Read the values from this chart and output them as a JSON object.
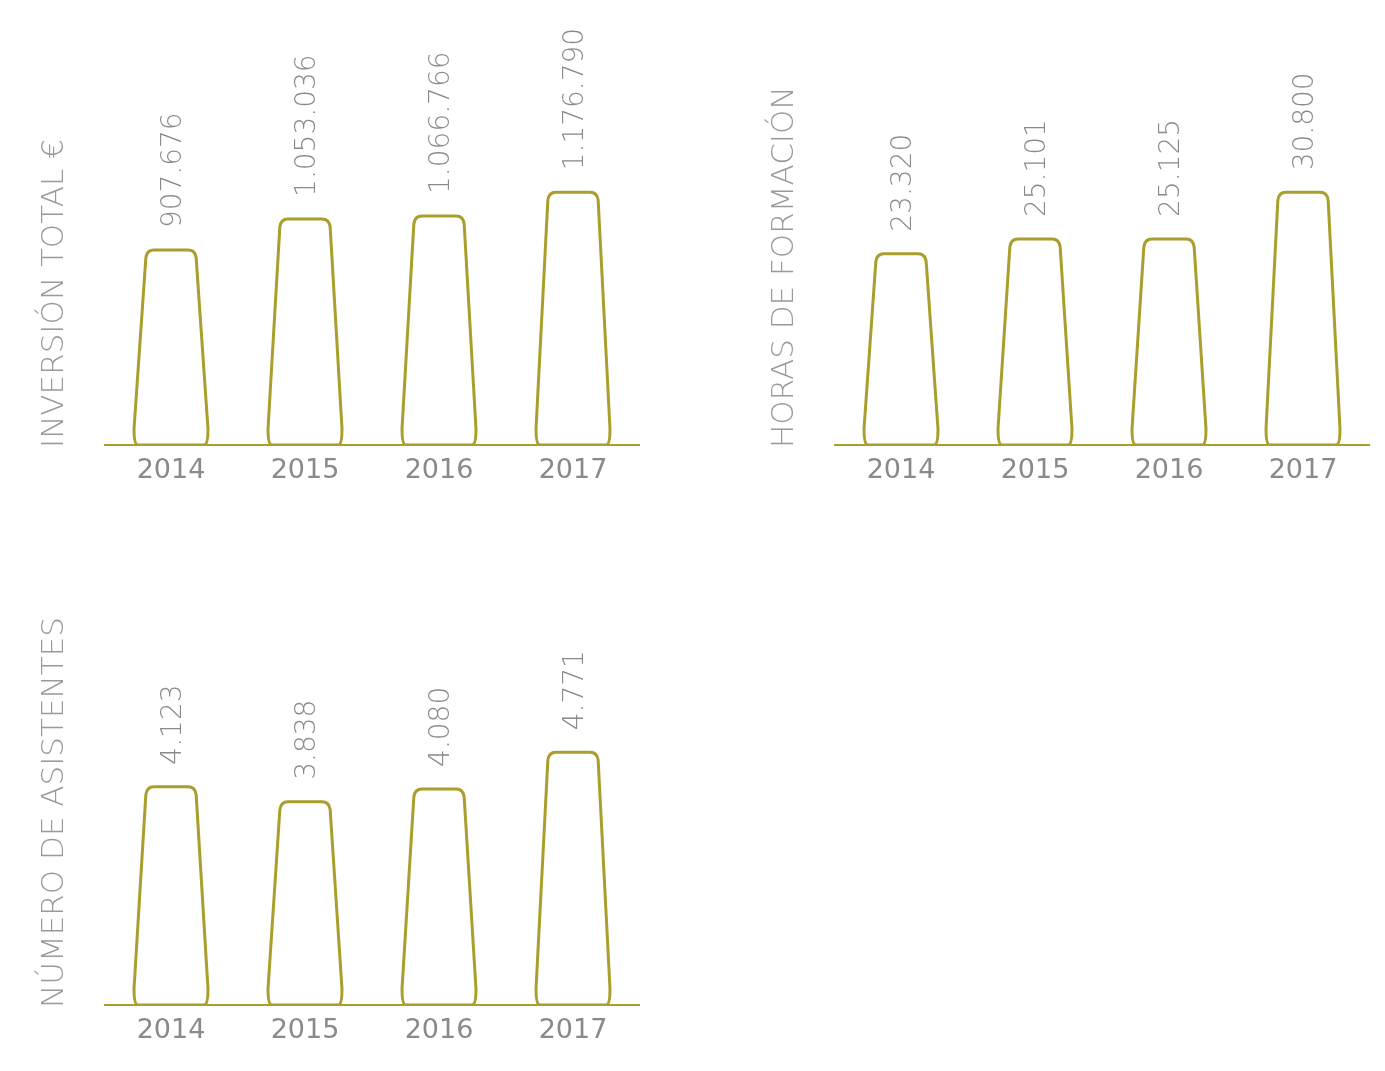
{
  "chart_data": [
    {
      "type": "bar",
      "ylabel": "INVERSIÓN TOTAL  €",
      "categories": [
        "2014",
        "2015",
        "2016",
        "2017"
      ],
      "values": [
        907676,
        1053036,
        1066766,
        1176790
      ],
      "color": "#aa9e2c",
      "data_labels": true,
      "value_labels": [
        "907.676",
        "1.053.036",
        "1.066.766",
        "1.176.790"
      ]
    },
    {
      "type": "bar",
      "ylabel": "HORAS DE FORMACIÓN",
      "categories": [
        "2014",
        "2015",
        "2016",
        "2017"
      ],
      "values": [
        23320,
        25101,
        25125,
        30800
      ],
      "color": "#aa9e2c",
      "data_labels": true,
      "value_labels": [
        "23.320",
        "25.101",
        "25.125",
        "30.800"
      ]
    },
    {
      "type": "bar",
      "ylabel": "NÚMERO DE ASISTENTES",
      "categories": [
        "2014",
        "2015",
        "2016",
        "2017"
      ],
      "values": [
        4123,
        3838,
        4080,
        4771
      ],
      "color": "#aa9e2c",
      "data_labels": true,
      "value_labels": [
        "4.123",
        "3.838",
        "4.080",
        "4.771"
      ]
    }
  ]
}
